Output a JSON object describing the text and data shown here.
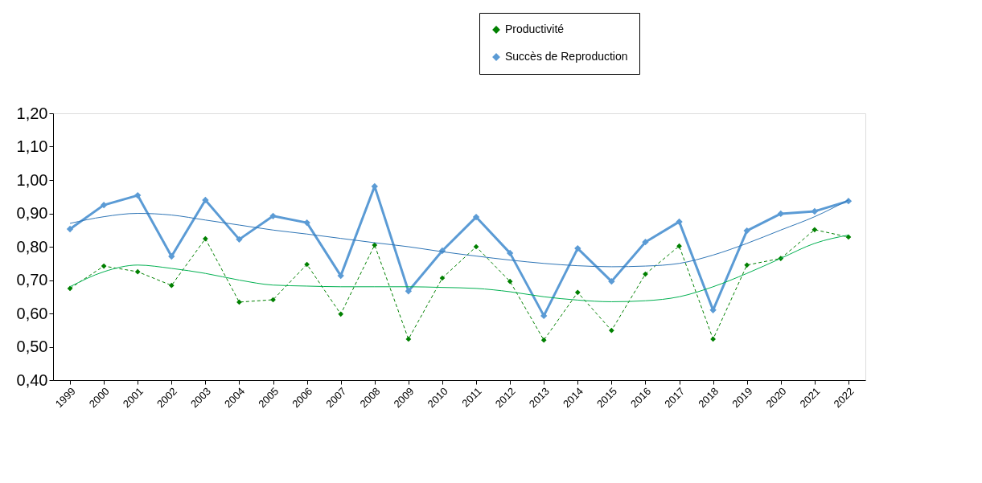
{
  "chart_data": {
    "type": "line",
    "categories": [
      "1999",
      "2000",
      "2001",
      "2002",
      "2003",
      "2004",
      "2005",
      "2006",
      "2007",
      "2008",
      "2009",
      "2010",
      "2011",
      "2012",
      "2013",
      "2014",
      "2015",
      "2016",
      "2017",
      "2018",
      "2019",
      "2020",
      "2021",
      "2022"
    ],
    "series": [
      {
        "name": "Productivité",
        "color": "#008000",
        "line_style": "dashed",
        "marker": "diamond",
        "values": [
          0.675,
          0.742,
          0.725,
          0.684,
          0.824,
          0.634,
          0.641,
          0.747,
          0.598,
          0.805,
          0.523,
          0.706,
          0.8,
          0.696,
          0.52,
          0.663,
          0.549,
          0.718,
          0.802,
          0.523,
          0.745,
          0.765,
          0.851,
          0.829
        ]
      },
      {
        "name": "Succès de Reproduction",
        "color": "#5b9bd5",
        "line_style": "solid",
        "marker": "diamond",
        "values": [
          0.853,
          0.925,
          0.954,
          0.771,
          0.94,
          0.822,
          0.892,
          0.872,
          0.713,
          0.981,
          0.667,
          0.788,
          0.889,
          0.781,
          0.593,
          0.795,
          0.696,
          0.814,
          0.875,
          0.61,
          0.848,
          0.899,
          0.906,
          0.937
        ]
      },
      {
        "type": "line",
        "color": "#00b050",
        "line_style": "solid",
        "marker": "none",
        "values": [
          0.68,
          0.725,
          0.745,
          0.735,
          0.72,
          0.7,
          0.685,
          0.682,
          0.68,
          0.68,
          0.68,
          0.678,
          0.675,
          0.665,
          0.65,
          0.64,
          0.635,
          0.638,
          0.65,
          0.68,
          0.72,
          0.765,
          0.81,
          0.835
        ]
      },
      {
        "type": "line",
        "color": "#2e75b6",
        "line_style": "solid",
        "marker": "none",
        "values": [
          0.87,
          0.89,
          0.9,
          0.895,
          0.88,
          0.865,
          0.85,
          0.838,
          0.825,
          0.812,
          0.8,
          0.785,
          0.772,
          0.76,
          0.75,
          0.743,
          0.74,
          0.742,
          0.75,
          0.775,
          0.81,
          0.85,
          0.89,
          0.94
        ]
      }
    ],
    "ylim": [
      0.4,
      1.2
    ],
    "yticks": [
      {
        "value": 0.4,
        "label": "0,40"
      },
      {
        "value": 0.5,
        "label": "0,50"
      },
      {
        "value": 0.6,
        "label": "0,60"
      },
      {
        "value": 0.7,
        "label": "0,70"
      },
      {
        "value": 0.8,
        "label": "0,80"
      },
      {
        "value": 0.9,
        "label": "0,90"
      },
      {
        "value": 1.0,
        "label": "1,00"
      },
      {
        "value": 1.1,
        "label": "1,10"
      },
      {
        "value": 1.2,
        "label": "1,20"
      }
    ],
    "grid": false,
    "legend": "top right"
  }
}
